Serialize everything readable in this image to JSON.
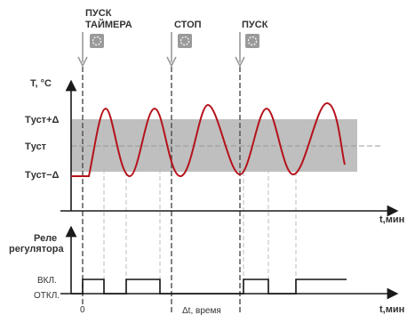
{
  "events": {
    "start_timer_line1": "ПУСК",
    "start_timer_line2": "ТАЙМЕРА",
    "stop": "СТОП",
    "start": "ПУСК"
  },
  "temperature_axis": {
    "label": "T, °C",
    "upper": "Tуст+Δ",
    "setpoint": "Tуст",
    "lower": "Tуст−Δ",
    "time_label": "t,мин"
  },
  "relay_axis": {
    "label_line1": "Реле",
    "label_line2": "регулятора",
    "on": "ВКЛ.",
    "off": "ОТКЛ.",
    "origin": "0",
    "time_label": "t,мин",
    "bottom_note": "Δt, время"
  },
  "colors": {
    "curve": "#b5121b",
    "band": "#bfbfbf",
    "icon_bg": "#9a9a9a",
    "arrow": "#9a9a9a"
  }
}
